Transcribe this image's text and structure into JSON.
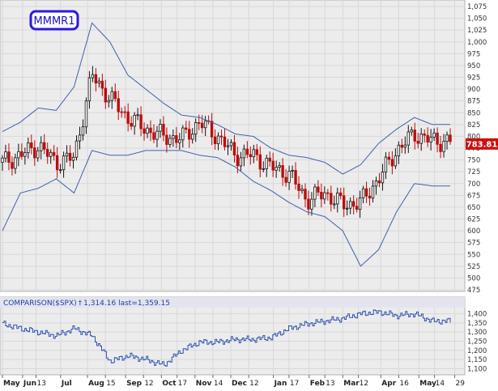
{
  "chart_data": [
    {
      "type": "candlestick",
      "symbol_label": "MMMR1",
      "last_value_label": "783.81",
      "last_value": 783.81,
      "ylim": [
        475,
        1075
      ],
      "yticks": [
        475,
        500,
        525,
        550,
        575,
        600,
        625,
        650,
        675,
        700,
        725,
        750,
        775,
        800,
        825,
        850,
        875,
        900,
        925,
        950,
        975,
        1000,
        1025,
        1050,
        1075
      ],
      "ytick_labels": [
        "475",
        "500",
        "525",
        "550",
        "575",
        "600",
        "625",
        "650",
        "675",
        "700",
        "725",
        "750",
        "775",
        "800",
        "825",
        "850",
        "875",
        "900",
        "925",
        "950",
        "975",
        "1,000",
        "1,025",
        "1,050",
        "1,075"
      ],
      "x_labels": [
        "May",
        "Jun",
        "13",
        "Jul",
        "Aug",
        "15",
        "Sep",
        "12",
        "Oct",
        "17",
        "Nov",
        "14",
        "Dec",
        "12",
        "Jan",
        "17",
        "Feb",
        "13",
        "Mar",
        "12",
        "Apr",
        "16",
        "May",
        "14",
        "29"
      ],
      "x_label_pos": [
        0,
        4.5,
        7.5,
        13,
        19,
        23,
        27.5,
        31.5,
        35.5,
        39,
        43,
        47,
        51,
        55,
        60.5,
        64,
        68.5,
        72,
        76,
        79.5,
        84.5,
        88.5,
        93,
        96.5,
        101
      ],
      "candle_sample_x": [
        0,
        4,
        8,
        12,
        16,
        20,
        24,
        28,
        32,
        36,
        40,
        44,
        48,
        52,
        56,
        60,
        64,
        68,
        72,
        76,
        80,
        84,
        88,
        92,
        96
      ],
      "close": [
        745,
        760,
        780,
        745,
        755,
        930,
        880,
        840,
        815,
        800,
        795,
        830,
        800,
        760,
        760,
        735,
        720,
        665,
        680,
        655,
        660,
        710,
        770,
        805,
        790
      ],
      "bollinger_upper": [
        810,
        830,
        860,
        855,
        905,
        1040,
        1000,
        930,
        900,
        870,
        845,
        840,
        825,
        805,
        800,
        775,
        760,
        755,
        745,
        720,
        740,
        785,
        815,
        840,
        825
      ],
      "bollinger_lower": [
        600,
        680,
        690,
        710,
        680,
        770,
        760,
        760,
        770,
        770,
        770,
        760,
        755,
        735,
        705,
        685,
        660,
        640,
        630,
        600,
        525,
        560,
        640,
        700,
        695
      ]
    },
    {
      "type": "line",
      "title": "COMPARISON($SPX)",
      "values_text": "1,314.16 last=1,359.15",
      "series": [
        {
          "name": "$SPX",
          "values": [
            1345,
            1320,
            1300,
            1280,
            1320,
            1280,
            1140,
            1170,
            1150,
            1120,
            1200,
            1245,
            1245,
            1260,
            1260,
            1270,
            1320,
            1345,
            1360,
            1375,
            1400,
            1410,
            1390,
            1400,
            1360
          ]
        }
      ],
      "ylim": [
        1075,
        1425
      ],
      "yticks": [
        1100,
        1150,
        1200,
        1250,
        1300,
        1350,
        1400
      ],
      "ytick_labels": [
        "1,100",
        "1,150",
        "1,200",
        "1,250",
        "1,300",
        "1,350",
        "1,400"
      ]
    }
  ]
}
